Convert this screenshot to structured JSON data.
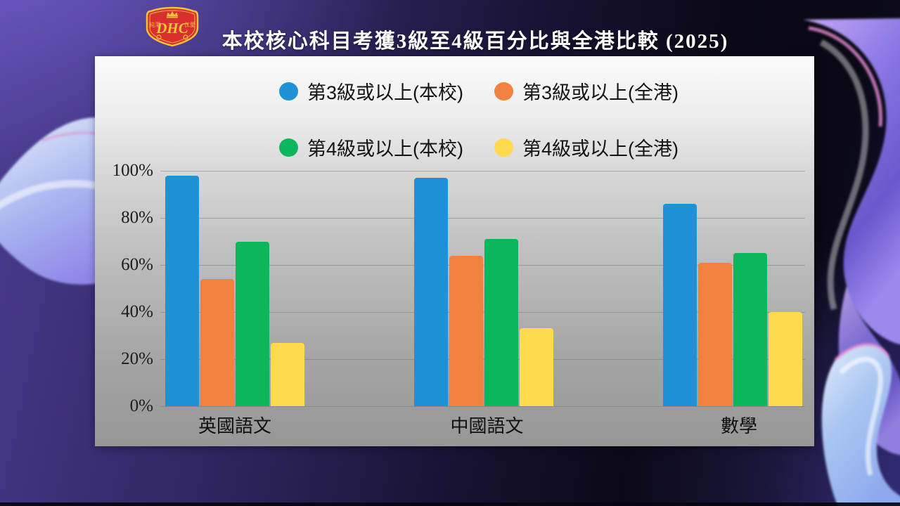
{
  "header": {
    "title": "本校核心科目考獲3級至4級百分比與全港比較 (2025)",
    "crest": {
      "letters": "DHC",
      "left_motto": "純潔",
      "right_motto": "仁愛",
      "shield_color": "#d92f2f",
      "gold_color": "#f3c23e"
    }
  },
  "chart_data": {
    "type": "bar",
    "title": "本校核心科目考獲3級至4級百分比與全港比較 (2025)",
    "categories": [
      "英國語文",
      "中國語文",
      "數學"
    ],
    "series": [
      {
        "name": "第3級或以上(本校)",
        "color": "#1E91D7",
        "values": [
          98,
          97,
          86
        ]
      },
      {
        "name": "第3級或以上(全港)",
        "color": "#F0813F",
        "values": [
          54,
          64,
          61
        ]
      },
      {
        "name": "第4級或以上(本校)",
        "color": "#0BB65C",
        "values": [
          70,
          71,
          65
        ]
      },
      {
        "name": "第4級或以上(全港)",
        "color": "#FFD94E",
        "values": [
          27,
          33,
          40
        ]
      }
    ],
    "xlabel": "",
    "ylabel": "",
    "ylim": [
      0,
      100
    ],
    "yticks": [
      "100%",
      "80%",
      "60%",
      "40%",
      "20%",
      "0%"
    ],
    "grid": true,
    "legend_position": "top"
  }
}
